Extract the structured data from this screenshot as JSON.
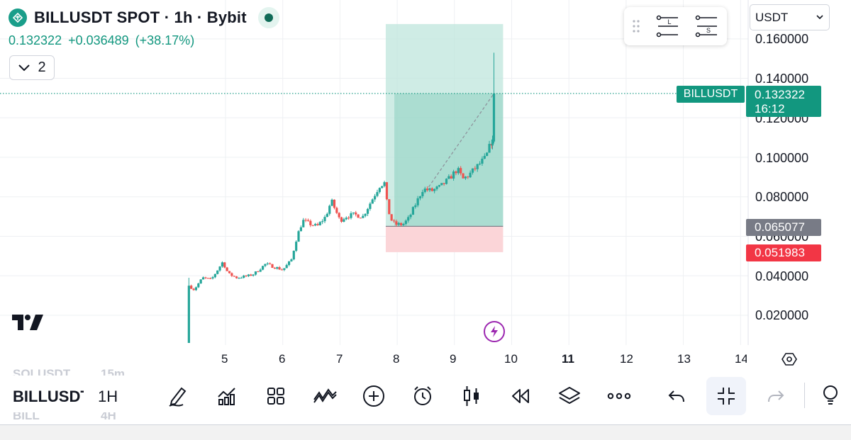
{
  "header": {
    "title": "BILLUSDT SPOT · 1h · Bybit",
    "last_price": "0.132322",
    "change": "+0.036489",
    "change_pct": "(+38.17%)",
    "collapsed_count": "2",
    "logo_icon": "bybit-token-logo-icon",
    "status_icon": "market-status-dot-icon"
  },
  "trade_panel": {
    "long_label": "L",
    "short_label": "S"
  },
  "currency": {
    "selected": "USDT"
  },
  "price_axis": {
    "labels": [
      "0.160000",
      "0.140000",
      "0.120000",
      "0.100000",
      "0.080000",
      "0.060000",
      "0.040000",
      "0.020000"
    ]
  },
  "tags": {
    "symbol": "BILLUSDT",
    "last_price": "0.132322",
    "countdown": "16:12",
    "entry_price": "0.065077",
    "stop_price": "0.051983"
  },
  "time_axis": {
    "labels": [
      {
        "text": "5",
        "bold": false
      },
      {
        "text": "6",
        "bold": false
      },
      {
        "text": "7",
        "bold": false
      },
      {
        "text": "8",
        "bold": false
      },
      {
        "text": "9",
        "bold": false
      },
      {
        "text": "10",
        "bold": false
      },
      {
        "text": "11",
        "bold": true
      },
      {
        "text": "12",
        "bold": false
      },
      {
        "text": "13",
        "bold": false
      },
      {
        "text": "14",
        "bold": false
      }
    ]
  },
  "bottom_bar": {
    "symbol": "BILLUSDT",
    "interval": "1H",
    "ghost_symbol_above": "SOLUSDT",
    "ghost_interval_above": "15m",
    "ghost_interval_below": "4H",
    "tools": [
      "drawing-pen-icon",
      "indicators-icon",
      "layout-grid-icon",
      "patterns-icon",
      "add-icon",
      "alert-clock-icon",
      "candle-type-icon",
      "replay-icon",
      "layers-icon",
      "more-icon",
      "undo-icon",
      "exit-fullscreen-icon",
      "redo-icon",
      "idea-bulb-icon"
    ]
  },
  "colors": {
    "up": "#26a69a",
    "down": "#ef5350",
    "accent": "#12977f",
    "profit_zone": "#bfe5dc",
    "loss_zone": "#fbd5d8",
    "stop_tag": "#f23645",
    "entry_tag": "#787b86"
  },
  "chart_data": {
    "type": "candlestick",
    "title": "BILLUSDT SPOT · 1h · Bybit",
    "x_unit": "day of month",
    "x_ticks": [
      5,
      6,
      7,
      8,
      9,
      10,
      11,
      12,
      13,
      14
    ],
    "y_ticks": [
      0.02,
      0.04,
      0.06,
      0.08,
      0.1,
      0.12,
      0.14,
      0.16
    ],
    "ylim": [
      0.005,
      0.17
    ],
    "grid": true,
    "price_series_path": [
      [
        4.35,
        0.006
      ],
      [
        4.36,
        0.035
      ],
      [
        4.45,
        0.033
      ],
      [
        4.6,
        0.039
      ],
      [
        4.75,
        0.038
      ],
      [
        4.95,
        0.047
      ],
      [
        5.05,
        0.041
      ],
      [
        5.2,
        0.039
      ],
      [
        5.4,
        0.04
      ],
      [
        5.5,
        0.041
      ],
      [
        5.7,
        0.046
      ],
      [
        5.9,
        0.044
      ],
      [
        6.0,
        0.043
      ],
      [
        6.15,
        0.048
      ],
      [
        6.25,
        0.06
      ],
      [
        6.35,
        0.068
      ],
      [
        6.5,
        0.066
      ],
      [
        6.6,
        0.065
      ],
      [
        6.75,
        0.07
      ],
      [
        6.85,
        0.078
      ],
      [
        7.0,
        0.068
      ],
      [
        7.1,
        0.07
      ],
      [
        7.25,
        0.071
      ],
      [
        7.4,
        0.07
      ],
      [
        7.55,
        0.078
      ],
      [
        7.7,
        0.086
      ],
      [
        7.78,
        0.087
      ],
      [
        7.82,
        0.077
      ],
      [
        7.88,
        0.069
      ],
      [
        7.96,
        0.066
      ],
      [
        8.1,
        0.066
      ],
      [
        8.2,
        0.069
      ],
      [
        8.35,
        0.078
      ],
      [
        8.45,
        0.084
      ],
      [
        8.6,
        0.083
      ],
      [
        8.75,
        0.085
      ],
      [
        8.9,
        0.089
      ],
      [
        9.05,
        0.094
      ],
      [
        9.15,
        0.089
      ],
      [
        9.25,
        0.091
      ],
      [
        9.35,
        0.094
      ],
      [
        9.45,
        0.097
      ],
      [
        9.55,
        0.1
      ],
      [
        9.62,
        0.106
      ],
      [
        9.66,
        0.108
      ],
      [
        9.69,
        0.1323
      ]
    ],
    "long_position": {
      "entry": 0.065077,
      "target_top": 0.1675,
      "stop": 0.051983,
      "start_x": 7.8,
      "end_x": 9.85
    },
    "last_price": 0.132322,
    "spike_high": 0.153
  }
}
